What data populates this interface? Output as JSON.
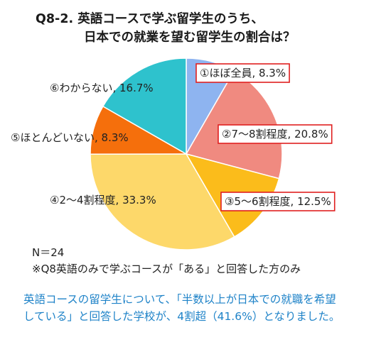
{
  "title_line1": "Q8-2. 英語コースで学ぶ留学生のうち、",
  "title_line2": "日本での就業を望む留学生の割合は？",
  "chart_data": {
    "type": "pie",
    "slices": [
      {
        "label": "①ほぼ全員, 8.3%",
        "value": 8.3,
        "color": "#8eb4f0",
        "highlighted": true
      },
      {
        "label": "②7～8割程度, 20.8%",
        "value": 20.8,
        "color": "#f08a80",
        "highlighted": true
      },
      {
        "label": "③5～6割程度, 12.5%",
        "value": 12.5,
        "color": "#fbbc1b",
        "highlighted": true
      },
      {
        "label": "④2～4割程度, 33.3%",
        "value": 33.3,
        "color": "#fdd86a",
        "highlighted": false
      },
      {
        "label": "⑤ほとんどいない, 8.3%",
        "value": 8.3,
        "color": "#f56f0c",
        "highlighted": false
      },
      {
        "label": "⑥わからない, 16.7%",
        "value": 16.7,
        "color": "#2ec2cd",
        "highlighted": false
      }
    ],
    "start_angle": "12 o'clock",
    "direction": "clockwise"
  },
  "notes": {
    "n": "N＝24",
    "condition": "※Q8英語のみで学ぶコースが「ある」と回答した方のみ"
  },
  "summary_line1": "英語コースの留学生について、「半数以上が日本での就職を希望",
  "summary_line2": "している」と回答した学校が、4割超（41.6%）となりました。",
  "colors": {
    "highlight_border": "#e02020",
    "summary_text": "#1f83c8"
  }
}
